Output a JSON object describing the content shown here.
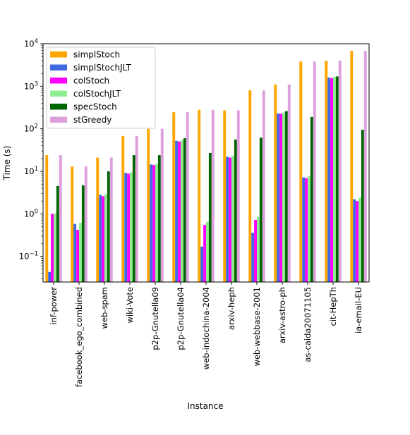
{
  "chart_data": {
    "type": "bar",
    "title": "",
    "xlabel": "Instance",
    "ylabel": "Time (s)",
    "yscale": "log",
    "ylim": [
      0.025,
      10000
    ],
    "legend_position": "upper-left",
    "grid": false,
    "categories": [
      "inf-power",
      "facebook_ego_combined",
      "web-spam",
      "wiki-Vote",
      "p2p-Gnutella09",
      "p2p-Gnutella04",
      "web-indochina-2004",
      "arxiv-heph",
      "web-webbase-2001",
      "arxiv-astro-ph",
      "as-caida20071105",
      "cit-HepTh",
      "ia-email-EU"
    ],
    "yticks": [
      {
        "value": 0.1,
        "base": "10",
        "exp": "−1"
      },
      {
        "value": 1,
        "base": "10",
        "exp": "0"
      },
      {
        "value": 10,
        "base": "10",
        "exp": "1"
      },
      {
        "value": 100,
        "base": "10",
        "exp": "2"
      },
      {
        "value": 1000,
        "base": "10",
        "exp": "3"
      },
      {
        "value": 10000,
        "base": "10",
        "exp": "4"
      }
    ],
    "series": [
      {
        "name": "simplStoch",
        "color": "#ffa500",
        "values": [
          24,
          13,
          21,
          68,
          100,
          245,
          280,
          270,
          800,
          1100,
          3800,
          4000,
          6800
        ]
      },
      {
        "name": "simplStochJLT",
        "color": "#4169e1",
        "values": [
          0.043,
          0.58,
          2.8,
          9.2,
          14.5,
          52,
          0.17,
          22,
          0.36,
          230,
          7.2,
          1600,
          2.2
        ]
      },
      {
        "name": "colStoch",
        "color": "#ff00ff",
        "values": [
          1.0,
          0.42,
          2.6,
          8.8,
          14.0,
          50,
          0.55,
          21,
          0.72,
          225,
          6.9,
          1550,
          2.0
        ]
      },
      {
        "name": "colStochJLT",
        "color": "#90ee90",
        "values": [
          1.02,
          0.62,
          2.9,
          9.5,
          14.8,
          54,
          0.65,
          23,
          0.85,
          240,
          7.8,
          1650,
          2.4
        ]
      },
      {
        "name": "specStoch",
        "color": "#006400",
        "values": [
          4.5,
          4.7,
          10.0,
          24,
          24,
          60,
          27,
          56,
          62,
          260,
          190,
          1700,
          95
        ]
      },
      {
        "name": "stGreedy",
        "color": "#dda0dd",
        "values": [
          24,
          13,
          21,
          68,
          100,
          245,
          280,
          270,
          800,
          1100,
          3800,
          4000,
          6800
        ]
      }
    ]
  }
}
